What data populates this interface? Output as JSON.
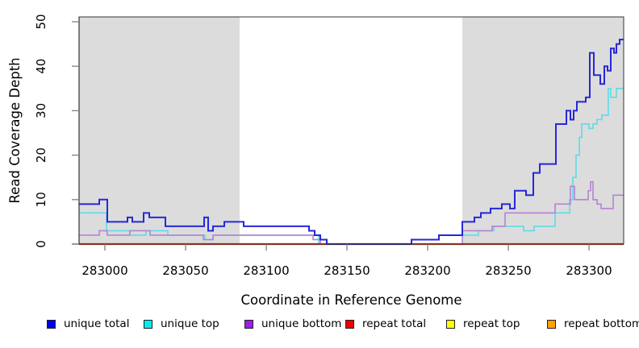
{
  "chart_data": {
    "type": "line",
    "subtype": "step",
    "title": "",
    "xlabel": "Coordinate in Reference Genome",
    "ylabel": "Read Coverage Depth",
    "xlim": [
      282984,
      283322
    ],
    "ylim": [
      0,
      51
    ],
    "x_ticks": [
      283000,
      283050,
      283100,
      283150,
      283200,
      283250,
      283300
    ],
    "y_ticks": [
      0,
      10,
      20,
      30,
      40,
      50
    ],
    "grid": false,
    "legend_position": "bottom",
    "shade_color": "#dcdcdc",
    "shaded_regions": [
      [
        282984,
        283083.5
      ],
      [
        283221.5,
        283322
      ]
    ],
    "draw_order": [
      1,
      2,
      3,
      4,
      5,
      0
    ],
    "series": [
      {
        "id": "unique-total",
        "label": "unique total",
        "legend_color": "#0000ee",
        "line_color": "#2727d8",
        "line_width": 2,
        "points": [
          [
            282984,
            9
          ],
          [
            282996.5,
            10
          ],
          [
            283001.5,
            5
          ],
          [
            283014,
            6
          ],
          [
            283017,
            5
          ],
          [
            283024,
            7
          ],
          [
            283027.5,
            6
          ],
          [
            283037.5,
            4
          ],
          [
            283061.5,
            6
          ],
          [
            283064,
            3
          ],
          [
            283067,
            4
          ],
          [
            283074,
            5
          ],
          [
            283086,
            4
          ],
          [
            283126.5,
            3
          ],
          [
            283130,
            2
          ],
          [
            283133.5,
            1
          ],
          [
            283137.5,
            0
          ],
          [
            283190,
            1
          ],
          [
            283207,
            2
          ],
          [
            283221.5,
            5
          ],
          [
            283229,
            6
          ],
          [
            283233,
            7
          ],
          [
            283239,
            8
          ],
          [
            283246,
            9
          ],
          [
            283251,
            8
          ],
          [
            283254,
            12
          ],
          [
            283261,
            11
          ],
          [
            283265.5,
            16
          ],
          [
            283269.5,
            18
          ],
          [
            283279.5,
            27
          ],
          [
            283286,
            30
          ],
          [
            283288.5,
            28
          ],
          [
            283290.5,
            30
          ],
          [
            283292.5,
            32
          ],
          [
            283298,
            33
          ],
          [
            283300.5,
            43
          ],
          [
            283303,
            38
          ],
          [
            283307,
            36
          ],
          [
            283309.5,
            40
          ],
          [
            283311.5,
            39
          ],
          [
            283313.5,
            44
          ],
          [
            283315.5,
            43
          ],
          [
            283317,
            45
          ],
          [
            283319,
            46
          ]
        ]
      },
      {
        "id": "unique-top",
        "label": "unique top",
        "legend_color": "#00eeee",
        "line_color": "#5cdce6",
        "line_width": 1.6,
        "points": [
          [
            282984,
            7
          ],
          [
            283001,
            3
          ],
          [
            283015.5,
            2
          ],
          [
            283025.5,
            3
          ],
          [
            283039,
            2
          ],
          [
            283062,
            1
          ],
          [
            283067,
            2
          ],
          [
            283132.5,
            0
          ],
          [
            283190,
            1
          ],
          [
            283207,
            2
          ],
          [
            283231.5,
            3
          ],
          [
            283241,
            4
          ],
          [
            283259.5,
            3
          ],
          [
            283266,
            4
          ],
          [
            283279,
            7
          ],
          [
            283288,
            10
          ],
          [
            283290,
            15
          ],
          [
            283292,
            20
          ],
          [
            283294,
            24
          ],
          [
            283295.5,
            27
          ],
          [
            283300,
            26
          ],
          [
            283302.5,
            27
          ],
          [
            283305,
            28
          ],
          [
            283308,
            29
          ],
          [
            283312,
            35
          ],
          [
            283313.5,
            33
          ],
          [
            283317,
            35
          ]
        ]
      },
      {
        "id": "unique-bottom",
        "label": "unique bottom",
        "legend_color": "#9b1fe8",
        "line_color": "#b583d6",
        "line_width": 1.6,
        "points": [
          [
            282984,
            2
          ],
          [
            282996.5,
            3
          ],
          [
            283001.5,
            2
          ],
          [
            283015.5,
            3
          ],
          [
            283028,
            2
          ],
          [
            283061,
            1
          ],
          [
            283067,
            2
          ],
          [
            283129,
            1
          ],
          [
            283133.5,
            0
          ],
          [
            283221.5,
            3
          ],
          [
            283240,
            4
          ],
          [
            283248,
            7
          ],
          [
            283279,
            9
          ],
          [
            283288.5,
            13
          ],
          [
            283291,
            10
          ],
          [
            283299.5,
            12
          ],
          [
            283301,
            14
          ],
          [
            283302.5,
            10
          ],
          [
            283305,
            9
          ],
          [
            283307.5,
            8
          ],
          [
            283315,
            11
          ]
        ]
      },
      {
        "id": "repeat-total",
        "label": "repeat total",
        "legend_color": "#ee0000",
        "line_color": "#dd0000",
        "line_width": 2.2,
        "points": [
          [
            282984,
            0
          ]
        ]
      },
      {
        "id": "repeat-top",
        "label": "repeat top",
        "legend_color": "#ffff00",
        "line_color": "#ffff33",
        "line_width": 1,
        "points": [
          [
            282984,
            0
          ]
        ]
      },
      {
        "id": "repeat-bottom",
        "label": "repeat bottom",
        "legend_color": "#ffa200",
        "line_color": "#ff8c0a",
        "line_width": 1.6,
        "points": [
          [
            282984,
            0
          ]
        ]
      }
    ]
  }
}
